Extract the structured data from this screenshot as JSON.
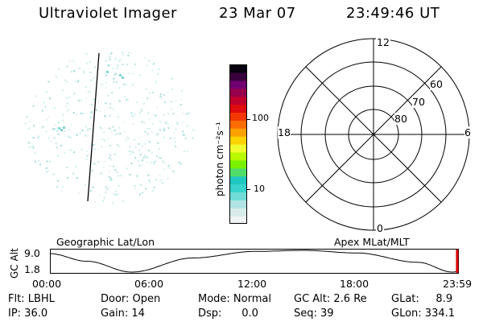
{
  "header": {
    "instrument": "Ultraviolet Imager",
    "date": "23 Mar 07",
    "time": "23:49:46 UT"
  },
  "colorbar": {
    "label": "photon cm⁻²s⁻¹",
    "ticks": [
      {
        "label": "100",
        "value": 100
      },
      {
        "label": "10",
        "value": 10
      }
    ],
    "colors": [
      "#f0f4f4",
      "#d8ecec",
      "#b0e4e4",
      "#70dcd8",
      "#38d4cc",
      "#20c8c0",
      "#50dc68",
      "#78f000",
      "#b8f800",
      "#f0fc30",
      "#fcd400",
      "#fca000",
      "#fc6c00",
      "#f43800",
      "#e00c10",
      "#c0002c",
      "#98004c",
      "#700070",
      "#38003c",
      "#080010"
    ]
  },
  "polar": {
    "mlt_labels": {
      "top": "12",
      "bottom": "0",
      "left": "18",
      "right": "6"
    },
    "lat_labels": [
      "60",
      "70",
      "80"
    ]
  },
  "timeline": {
    "left_title": "Geographic Lat/Lon",
    "right_title": "Apex MLat/MLT",
    "y_label": "GC Alt",
    "y_ticks": [
      "9.0",
      "1.8"
    ],
    "x_ticks": [
      "00:00",
      "06:00",
      "12:00",
      "18:00",
      "23:59"
    ],
    "current_marker_hours": 23.83
  },
  "info": {
    "flt": "Flt: LBHL",
    "ip": "IP: 36.0",
    "door": "Door: Open",
    "gain": "Gain: 14",
    "mode": "Mode: Normal",
    "dsp": "Dsp:      0.0",
    "gcalt": "GC Alt: 2.6 Re",
    "seq": "Seq: 39",
    "glat": "GLat:     8.9",
    "glon": "GLon: 334.1"
  }
}
